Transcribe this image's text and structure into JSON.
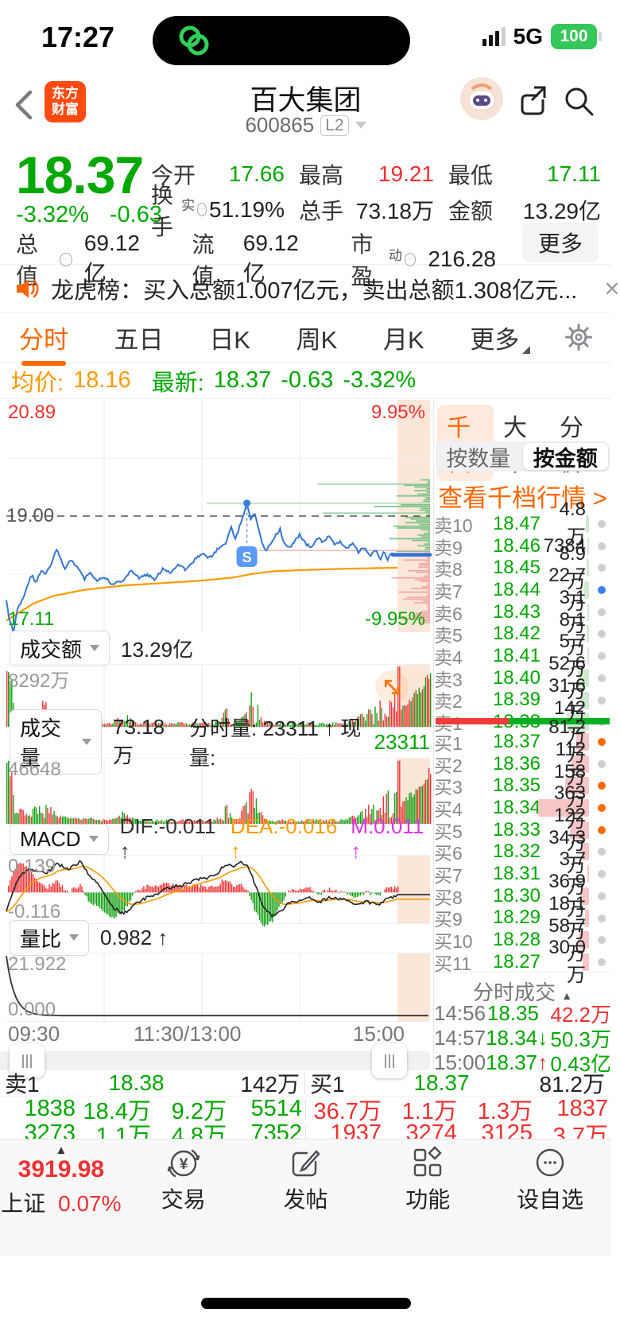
{
  "colors": {
    "green": "#00a800",
    "red": "#f23030",
    "orange": "#ff6600",
    "avg_orange": "#ff9900",
    "blue": "#3575d3",
    "magenta": "#dd33dd",
    "peach": "#fbe6d7"
  },
  "status": {
    "time": "17:27",
    "network": "5G",
    "battery": "100"
  },
  "header": {
    "logo1": "东方",
    "logo2": "财富",
    "title": "百大集团",
    "code": "600865",
    "level": "L2"
  },
  "quote": {
    "price": "18.37",
    "change_pct": "-3.32%",
    "change": "-0.63",
    "more": "更多",
    "stats_r1": [
      {
        "label": "今开",
        "value": "17.66",
        "color": "g"
      },
      {
        "label": "最高",
        "value": "19.21",
        "color": "r"
      },
      {
        "label": "最低",
        "value": "17.11",
        "color": "g"
      }
    ],
    "stats_r2": [
      {
        "label": "换手",
        "sup": "实",
        "info": true,
        "value": "51.19%",
        "color": "k"
      },
      {
        "label": "总手",
        "value": "73.18万",
        "color": "k"
      },
      {
        "label": "金额",
        "value": "13.29亿",
        "color": "k"
      }
    ],
    "stats_r3": [
      {
        "label": "总值",
        "info": true,
        "value": "69.12亿"
      },
      {
        "label": "流值",
        "value": "69.12亿"
      },
      {
        "label": "市盈",
        "sup": "动",
        "info": true,
        "value": "216.28"
      }
    ]
  },
  "ticker": {
    "text": "龙虎榜：买入总额1.007亿元，卖出总额1.308亿元..."
  },
  "tabs": [
    {
      "label": "分时",
      "active": true
    },
    {
      "label": "五日"
    },
    {
      "label": "日K"
    },
    {
      "label": "周K"
    },
    {
      "label": "月K"
    },
    {
      "label": "更多",
      "wedge": true
    }
  ],
  "info": {
    "avg_label": "均价:",
    "avg": "18.16",
    "latest_label": "最新:",
    "latest": "18.37",
    "chg": "-0.63",
    "chg_pct": "-3.32%"
  },
  "main_chart": {
    "high": "20.89",
    "low": "17.11",
    "pct_high": "9.95%",
    "pct_low": "-9.95%",
    "prev_close": "19.00",
    "marker": "S"
  },
  "panels": {
    "turnover": {
      "name": "成交额",
      "value": "13.29亿",
      "axis_top": "8292万"
    },
    "volume": {
      "name": "成交量",
      "value": "73.18万",
      "mid": "分时量: 23311 ↑ 现量:",
      "cur": "23311",
      "axis_top": "46648"
    },
    "macd": {
      "name": "MACD",
      "dif": "DIF:-0.011 ↑",
      "dea": "DEA:-0.016 ↑",
      "m": "M:0.011 ↑",
      "axis_top": "0.139",
      "axis_bottom": "-0.116"
    },
    "ratio": {
      "name": "量比",
      "value": "0.982 ↑",
      "axis_top": "21.922",
      "axis_bottom": "0.000"
    }
  },
  "time_axis": [
    "09:30",
    "11:30/13:00",
    "15:00"
  ],
  "right": {
    "tabs": [
      {
        "label": "千档",
        "active": true
      },
      {
        "label": "大单"
      },
      {
        "label": "分价"
      }
    ],
    "toggle": [
      {
        "label": "按数量"
      },
      {
        "label": "按金额",
        "active": true
      }
    ],
    "link": "查看千档行情 >",
    "sells": [
      {
        "label": "卖10",
        "price": "18.47",
        "vol": "4.8万",
        "dot": "gray",
        "w": 4
      },
      {
        "label": "卖9",
        "price": "18.46",
        "vol": "7384",
        "dot": "gray",
        "w": 2
      },
      {
        "label": "卖8",
        "price": "18.45",
        "vol": "8.9万",
        "dot": "gray",
        "w": 3
      },
      {
        "label": "卖7",
        "price": "18.44",
        "vol": "22.7万",
        "dot": "blue",
        "w": 6
      },
      {
        "label": "卖6",
        "price": "18.43",
        "vol": "3.1万",
        "dot": "gray",
        "w": 2
      },
      {
        "label": "卖5",
        "price": "18.42",
        "vol": "8.1万",
        "dot": "gray",
        "w": 3
      },
      {
        "label": "卖4",
        "price": "18.41",
        "vol": "5.7万",
        "dot": "gray",
        "w": 2
      },
      {
        "label": "卖3",
        "price": "18.40",
        "vol": "52.6万",
        "dot": "gray",
        "w": 14
      },
      {
        "label": "卖2",
        "price": "18.39",
        "vol": "31.6万",
        "dot": "gray",
        "w": 9
      },
      {
        "label": "卖1",
        "price": "18.38",
        "vol": "142万",
        "dot": "gray",
        "w": 28
      }
    ],
    "ratio_red_pct": 42,
    "buys": [
      {
        "label": "买1",
        "price": "18.37",
        "vol": "81.2万",
        "dot": "orange",
        "w": 16
      },
      {
        "label": "买2",
        "price": "18.36",
        "vol": "112万",
        "dot": "gray",
        "w": 22
      },
      {
        "label": "买3",
        "price": "18.35",
        "vol": "158万",
        "dot": "orange",
        "w": 30
      },
      {
        "label": "买4",
        "price": "18.34",
        "vol": "363万",
        "dot": "orange",
        "w": 64
      },
      {
        "label": "买5",
        "price": "18.33",
        "vol": "122万",
        "dot": "orange",
        "w": 24
      },
      {
        "label": "买6",
        "price": "18.32",
        "vol": "34.3万",
        "dot": "gray",
        "w": 9
      },
      {
        "label": "买7",
        "price": "18.31",
        "vol": "3.7万",
        "dot": "gray",
        "w": 2
      },
      {
        "label": "买8",
        "price": "18.30",
        "vol": "36.9万",
        "dot": "gray",
        "w": 10
      },
      {
        "label": "买9",
        "price": "18.29",
        "vol": "18.1万",
        "dot": "gray",
        "w": 5
      },
      {
        "label": "买10",
        "price": "18.28",
        "vol": "58.7万",
        "dot": "gray",
        "w": 13
      },
      {
        "label": "买11",
        "price": "18.27",
        "vol": "30.0万",
        "dot": "gray",
        "w": 8
      }
    ],
    "trades_header": "分时成交",
    "trades": [
      {
        "time": "14:56",
        "price": "18.35",
        "arrow": "",
        "arrow_color": "",
        "vol": "42.2万",
        "vol_color": "r"
      },
      {
        "time": "14:57",
        "price": "18.34",
        "arrow": "↓",
        "arrow_color": "g",
        "vol": "50.3万",
        "vol_color": "g"
      },
      {
        "time": "15:00",
        "price": "18.37",
        "arrow": "↑",
        "arrow_color": "r",
        "vol": "0.43亿",
        "vol_color": "g"
      }
    ]
  },
  "bottom": {
    "sell1": {
      "label": "卖1",
      "price": "18.38",
      "vol": "142万"
    },
    "buy1": {
      "label": "买1",
      "price": "18.37",
      "vol": "81.2万"
    },
    "row2_left": [
      "1838",
      "18.4万",
      "9.2万",
      "5514"
    ],
    "row2_right": [
      "36.7万",
      "1.1万",
      "1.3万",
      "1837"
    ],
    "row3_left": [
      "3273",
      "1.1万",
      "4.8万",
      "7352"
    ],
    "row3_right": [
      "1937",
      "3274",
      "3125",
      "3.7万"
    ]
  },
  "nav": {
    "market": {
      "arrow": "▲",
      "value": "3919.98",
      "name": "上证",
      "pct": "0.07%"
    },
    "items": [
      {
        "icon": "trade-icon",
        "label": "交易"
      },
      {
        "icon": "post-icon",
        "label": "发帖"
      },
      {
        "icon": "features-icon",
        "label": "功能"
      },
      {
        "icon": "watchlist-icon",
        "label": "设自选"
      }
    ]
  }
}
